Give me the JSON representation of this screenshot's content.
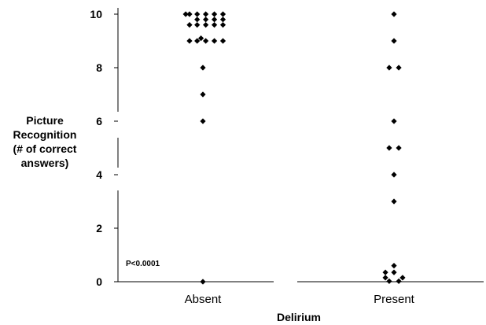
{
  "chart_data": {
    "type": "scatter",
    "title": "",
    "xlabel": "Delirium",
    "ylabel": [
      "Picture",
      "Recognition",
      "(# of correct",
      "answers)"
    ],
    "ylim": [
      0,
      10
    ],
    "yticks": [
      0,
      2,
      4,
      6,
      8,
      10
    ],
    "categories": [
      "Absent",
      "Present"
    ],
    "grid": false,
    "annotation": "P<0.0001",
    "marker_color": "#000000",
    "series": [
      {
        "category": "Absent",
        "points": [
          {
            "offset": -0.18,
            "y": 10
          },
          {
            "offset": -0.14,
            "y": 10
          },
          {
            "offset": -0.06,
            "y": 10
          },
          {
            "offset": 0.03,
            "y": 10
          },
          {
            "offset": 0.12,
            "y": 10
          },
          {
            "offset": 0.21,
            "y": 10
          },
          {
            "offset": -0.06,
            "y": 9.8
          },
          {
            "offset": 0.03,
            "y": 9.8
          },
          {
            "offset": 0.12,
            "y": 9.8
          },
          {
            "offset": 0.21,
            "y": 9.8
          },
          {
            "offset": -0.14,
            "y": 9.6
          },
          {
            "offset": -0.06,
            "y": 9.6
          },
          {
            "offset": 0.03,
            "y": 9.6
          },
          {
            "offset": 0.12,
            "y": 9.6
          },
          {
            "offset": 0.21,
            "y": 9.6
          },
          {
            "offset": -0.02,
            "y": 9.1
          },
          {
            "offset": -0.14,
            "y": 9
          },
          {
            "offset": -0.06,
            "y": 9
          },
          {
            "offset": 0.03,
            "y": 9
          },
          {
            "offset": 0.12,
            "y": 9
          },
          {
            "offset": 0.21,
            "y": 9
          },
          {
            "offset": 0,
            "y": 8
          },
          {
            "offset": 0,
            "y": 7
          },
          {
            "offset": 0,
            "y": 6
          },
          {
            "offset": 0,
            "y": 0
          }
        ]
      },
      {
        "category": "Present",
        "points": [
          {
            "offset": 0,
            "y": 10
          },
          {
            "offset": 0,
            "y": 9
          },
          {
            "offset": -0.05,
            "y": 8
          },
          {
            "offset": 0.05,
            "y": 8
          },
          {
            "offset": 0,
            "y": 6
          },
          {
            "offset": -0.05,
            "y": 5
          },
          {
            "offset": 0.05,
            "y": 5
          },
          {
            "offset": 0,
            "y": 4
          },
          {
            "offset": 0,
            "y": 3
          },
          {
            "offset": 0,
            "y": 0.6
          },
          {
            "offset": -0.09,
            "y": 0.35
          },
          {
            "offset": 0,
            "y": 0.35
          },
          {
            "offset": -0.09,
            "y": 0.15
          },
          {
            "offset": 0.09,
            "y": 0.15
          },
          {
            "offset": -0.05,
            "y": 0.02
          },
          {
            "offset": 0.05,
            "y": 0.02
          }
        ]
      }
    ]
  }
}
